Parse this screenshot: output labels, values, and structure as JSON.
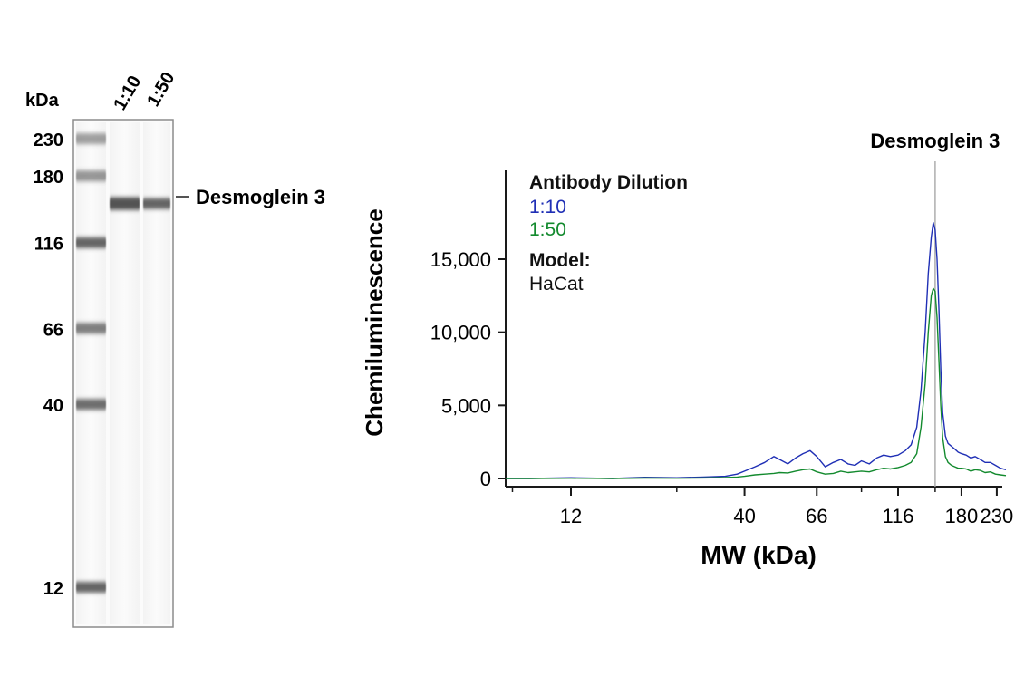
{
  "blot": {
    "unit_label": "kDa",
    "lane_labels": [
      "1:10",
      "1:50"
    ],
    "markers": [
      {
        "label": "230",
        "kda": 230
      },
      {
        "label": "180",
        "kda": 180
      },
      {
        "label": "116",
        "kda": 116
      },
      {
        "label": "66",
        "kda": 66
      },
      {
        "label": "40",
        "kda": 40
      },
      {
        "label": "12",
        "kda": 12
      }
    ],
    "band_label": "Desmoglein 3",
    "band_kda": 150
  },
  "chart_data": {
    "type": "line",
    "xlabel": "MW (kDa)",
    "ylabel": "Chemiluminescence",
    "x_scale": "log",
    "x_ticks": [
      12,
      40,
      66,
      116,
      180,
      230
    ],
    "x_tick_labels": [
      "12",
      "40",
      "66",
      "116",
      "180",
      "230"
    ],
    "y_ticks": [
      0,
      5000,
      10000,
      15000
    ],
    "y_tick_labels": [
      "0",
      "5,000",
      "10,000",
      "15,000"
    ],
    "ylim": [
      -800,
      21000
    ],
    "grid": false,
    "reference_line": {
      "x": 150,
      "label": "Desmoglein 3"
    },
    "legend": {
      "title": "Antibody Dilution",
      "model_title": "Model:",
      "model_value": "HaCat",
      "placement": "top-left"
    },
    "series": [
      {
        "name": "1:10",
        "color": "#1f2fb5",
        "x": [
          6.8,
          9,
          12,
          16,
          20,
          25,
          30,
          35,
          38,
          40,
          43,
          46,
          49,
          51,
          54,
          57,
          60,
          63,
          66,
          70,
          74,
          78,
          82,
          86,
          90,
          95,
          100,
          105,
          110,
          116,
          122,
          127,
          132,
          136,
          140,
          143,
          146,
          148,
          150,
          152,
          154,
          156,
          158,
          161,
          164,
          168,
          172,
          176,
          180,
          186,
          192,
          198,
          205,
          212,
          220,
          228,
          236,
          245
        ],
        "y": [
          0,
          0,
          50,
          0,
          80,
          50,
          100,
          150,
          300,
          500,
          800,
          1100,
          1500,
          1300,
          1000,
          1400,
          1700,
          1900,
          1500,
          800,
          1100,
          1300,
          1000,
          900,
          1200,
          1000,
          1400,
          1600,
          1500,
          1600,
          1900,
          2300,
          3500,
          6000,
          10000,
          14000,
          16500,
          17500,
          17000,
          15000,
          11500,
          7500,
          4500,
          2900,
          2400,
          2200,
          2000,
          1800,
          1700,
          1600,
          1400,
          1500,
          1300,
          1100,
          1100,
          900,
          700,
          600
        ]
      },
      {
        "name": "1:50",
        "color": "#138a2e",
        "x": [
          6.8,
          9,
          12,
          16,
          20,
          25,
          30,
          35,
          38,
          40,
          43,
          46,
          49,
          51,
          54,
          57,
          60,
          63,
          66,
          70,
          74,
          78,
          82,
          86,
          90,
          95,
          100,
          105,
          110,
          116,
          122,
          127,
          132,
          136,
          140,
          143,
          146,
          148,
          150,
          152,
          154,
          156,
          158,
          161,
          164,
          168,
          172,
          176,
          180,
          186,
          192,
          198,
          205,
          212,
          220,
          228,
          236,
          245
        ],
        "y": [
          0,
          0,
          20,
          0,
          30,
          20,
          40,
          60,
          100,
          150,
          250,
          300,
          350,
          400,
          380,
          500,
          600,
          650,
          450,
          300,
          350,
          500,
          400,
          450,
          500,
          450,
          600,
          700,
          650,
          750,
          900,
          1100,
          1700,
          3500,
          6500,
          10000,
          12500,
          13000,
          12800,
          11000,
          8000,
          5000,
          2800,
          1500,
          1100,
          900,
          800,
          700,
          700,
          650,
          500,
          600,
          550,
          400,
          450,
          300,
          250,
          200
        ]
      }
    ]
  }
}
